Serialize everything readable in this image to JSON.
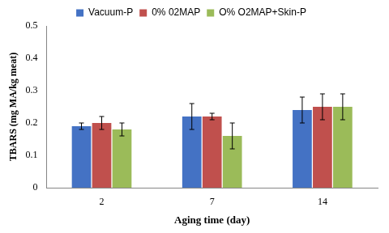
{
  "chart_data": {
    "type": "bar",
    "x_label": "Aging time (day)",
    "y_label": "TBARS (mg MA/kg meat)",
    "categories": [
      "2",
      "7",
      "14"
    ],
    "series": [
      {
        "name": "Vacuum-P",
        "color": "#4472c4",
        "values": [
          0.19,
          0.22,
          0.24
        ],
        "errors": [
          0.01,
          0.04,
          0.04
        ]
      },
      {
        "name": "0% 02MAP",
        "color": "#c0504d",
        "values": [
          0.2,
          0.22,
          0.25
        ],
        "errors": [
          0.02,
          0.01,
          0.04
        ]
      },
      {
        "name": "O% O2MAP+Skin-P",
        "color": "#9bbb59",
        "values": [
          0.18,
          0.16,
          0.25
        ],
        "errors": [
          0.02,
          0.04,
          0.04
        ]
      }
    ],
    "ylim": [
      0,
      0.5
    ],
    "yticks": [
      0,
      0.1,
      0.2,
      0.3,
      0.4,
      0.5
    ],
    "grid": false,
    "legend": "top"
  }
}
